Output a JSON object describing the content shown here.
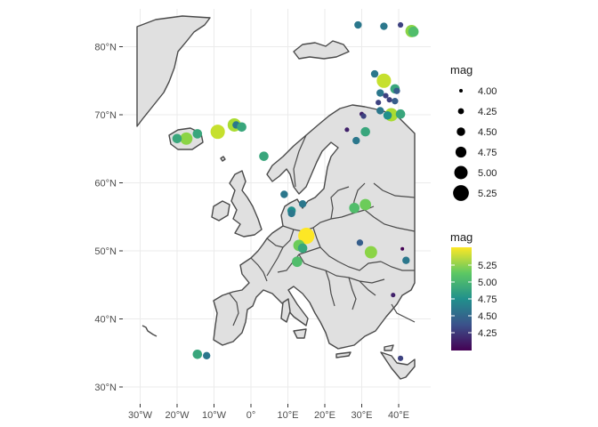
{
  "map": {
    "x_ticks": [
      "30°W",
      "20°W",
      "10°W",
      "0°",
      "10°E",
      "20°E",
      "30°E",
      "40°E"
    ],
    "y_ticks": [
      "30°N",
      "40°N",
      "50°N",
      "60°N",
      "70°N",
      "80°N"
    ],
    "legend_size": {
      "title": "mag",
      "labels": [
        "4.00",
        "4.25",
        "4.50",
        "4.75",
        "5.00",
        "5.25"
      ],
      "values": [
        4.0,
        4.25,
        4.5,
        4.75,
        5.0,
        5.25
      ]
    },
    "legend_color": {
      "title": "mag",
      "labels": [
        "5.25",
        "5.00",
        "4.75",
        "4.50",
        "4.25"
      ],
      "scale_colors": [
        "#440154",
        "#3b528b",
        "#21908c",
        "#5dc863",
        "#fde725"
      ]
    },
    "earthquakes": [
      {
        "lon": 29,
        "lat": 83.2,
        "mag": 4.4
      },
      {
        "lon": 36,
        "lat": 83.0,
        "mag": 4.4
      },
      {
        "lon": 40.5,
        "lat": 83.2,
        "mag": 4.2
      },
      {
        "lon": 43.5,
        "lat": 82.3,
        "mag": 4.9
      },
      {
        "lon": 44,
        "lat": 82.2,
        "mag": 4.7
      },
      {
        "lon": 33.5,
        "lat": 76.0,
        "mag": 4.4
      },
      {
        "lon": 36,
        "lat": 75.0,
        "mag": 5.1
      },
      {
        "lon": 35,
        "lat": 73.2,
        "mag": 4.4
      },
      {
        "lon": 36.5,
        "lat": 72.8,
        "mag": 4.2
      },
      {
        "lon": 39,
        "lat": 73.8,
        "mag": 4.6
      },
      {
        "lon": 39.5,
        "lat": 73.5,
        "mag": 4.3
      },
      {
        "lon": 37.5,
        "lat": 72.2,
        "mag": 4.2
      },
      {
        "lon": 39,
        "lat": 72.0,
        "mag": 4.3
      },
      {
        "lon": 34.5,
        "lat": 71.8,
        "mag": 4.2
      },
      {
        "lon": 35,
        "lat": 70.6,
        "mag": 4.4
      },
      {
        "lon": 38,
        "lat": 70.0,
        "mag": 5.0
      },
      {
        "lon": 37,
        "lat": 69.9,
        "mag": 4.5
      },
      {
        "lon": 40.5,
        "lat": 70.1,
        "mag": 4.6
      },
      {
        "lon": 30,
        "lat": 70.1,
        "mag": 4.1
      },
      {
        "lon": 30.5,
        "lat": 69.8,
        "mag": 4.2
      },
      {
        "lon": 26,
        "lat": 67.8,
        "mag": 4.1
      },
      {
        "lon": 28.5,
        "lat": 66.2,
        "mag": 4.4
      },
      {
        "lon": 31,
        "lat": 67.5,
        "mag": 4.6
      },
      {
        "lon": -9,
        "lat": 67.5,
        "mag": 5.1
      },
      {
        "lon": -4.5,
        "lat": 68.5,
        "mag": 5.0
      },
      {
        "lon": -4,
        "lat": 68.5,
        "mag": 4.4
      },
      {
        "lon": -2.5,
        "lat": 68.2,
        "mag": 4.6
      },
      {
        "lon": -14.5,
        "lat": 67.2,
        "mag": 4.6
      },
      {
        "lon": -17.5,
        "lat": 66.5,
        "mag": 4.9
      },
      {
        "lon": -20,
        "lat": 66.5,
        "mag": 4.6
      },
      {
        "lon": 3.5,
        "lat": 63.9,
        "mag": 4.6
      },
      {
        "lon": 9,
        "lat": 58.3,
        "mag": 4.4
      },
      {
        "lon": 14,
        "lat": 56.9,
        "mag": 4.4
      },
      {
        "lon": 11,
        "lat": 55.9,
        "mag": 4.5
      },
      {
        "lon": 11,
        "lat": 55.5,
        "mag": 4.4
      },
      {
        "lon": 28,
        "lat": 56.3,
        "mag": 4.7
      },
      {
        "lon": 31,
        "lat": 56.8,
        "mag": 4.8
      },
      {
        "lon": 15,
        "lat": 52.2,
        "mag": 5.3
      },
      {
        "lon": 13,
        "lat": 50.8,
        "mag": 4.8
      },
      {
        "lon": 14,
        "lat": 50.4,
        "mag": 4.6
      },
      {
        "lon": 12.5,
        "lat": 48.4,
        "mag": 4.7
      },
      {
        "lon": 29.5,
        "lat": 51.2,
        "mag": 4.3
      },
      {
        "lon": 32.5,
        "lat": 49.8,
        "mag": 4.9
      },
      {
        "lon": 41,
        "lat": 50.3,
        "mag": 4.0
      },
      {
        "lon": 42,
        "lat": 48.6,
        "mag": 4.4
      },
      {
        "lon": 38.5,
        "lat": 43.5,
        "mag": 4.1
      },
      {
        "lon": 40.5,
        "lat": 34.2,
        "mag": 4.2
      },
      {
        "lon": -14.5,
        "lat": 34.8,
        "mag": 4.6
      },
      {
        "lon": -12,
        "lat": 34.6,
        "mag": 4.4
      }
    ]
  }
}
